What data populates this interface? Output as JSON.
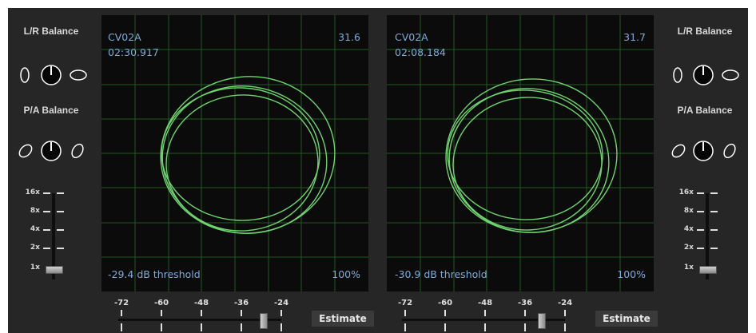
{
  "decks": [
    {
      "lr_balance_label": "L/R Balance",
      "pa_balance_label": "P/A Balance",
      "zoom_levels": [
        "16x",
        "8x",
        "4x",
        "2x",
        "1x"
      ],
      "zoom_selected": "1x",
      "scope": {
        "name": "CV02A",
        "time": "02:30.917",
        "value": "31.6",
        "threshold_text": "-29.4 dB threshold",
        "percent": "100%"
      },
      "threshold_scale": [
        "-72",
        "-60",
        "-48",
        "-36",
        "-24"
      ],
      "threshold_db": -29.4,
      "estimate_label": "Estimate"
    },
    {
      "lr_balance_label": "L/R Balance",
      "pa_balance_label": "P/A Balance",
      "zoom_levels": [
        "16x",
        "8x",
        "4x",
        "2x",
        "1x"
      ],
      "zoom_selected": "1x",
      "scope": {
        "name": "CV02A",
        "time": "02:08.184",
        "value": "31.7",
        "threshold_text": "-30.9 dB threshold",
        "percent": "100%"
      },
      "threshold_scale": [
        "-72",
        "-60",
        "-48",
        "-36",
        "-24"
      ],
      "threshold_db": -30.9,
      "estimate_label": "Estimate"
    }
  ],
  "colors": {
    "background": "#262626",
    "scope_background": "#0b0b0b",
    "grid": "#1f5a1f",
    "trace": "#6fd46f",
    "scope_text": "#7ea9d6",
    "label_text": "#d8d8d8"
  }
}
